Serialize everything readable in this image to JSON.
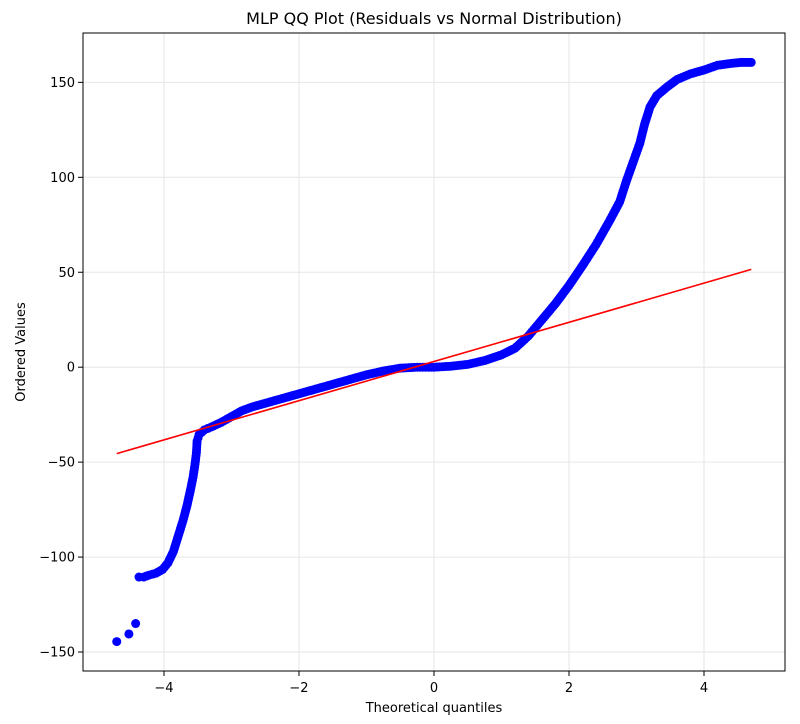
{
  "chart_data": {
    "type": "scatter",
    "title": "MLP QQ Plot (Residuals vs Normal Distribution)",
    "xlabel": "Theoretical quantiles",
    "ylabel": "Ordered Values",
    "xlim": [
      -5.2,
      5.2
    ],
    "ylim": [
      -160,
      176
    ],
    "xticks": [
      -4,
      -2,
      0,
      2,
      4
    ],
    "xtick_labels": [
      "−4",
      "−2",
      "0",
      "2",
      "4"
    ],
    "yticks": [
      -150,
      -100,
      -50,
      0,
      50,
      100,
      150
    ],
    "ytick_labels": [
      "−150",
      "−100",
      "−50",
      "0",
      "50",
      "100",
      "150"
    ],
    "grid": true,
    "series": [
      {
        "kind": "scatter",
        "color": "#0000ff",
        "points": [
          [
            -4.7,
            -144.5
          ],
          [
            -4.52,
            -140.5
          ],
          [
            -4.42,
            -135.0
          ],
          [
            -4.37,
            -110.5
          ],
          [
            -4.3,
            -110.5
          ],
          [
            -4.22,
            -109.5
          ],
          [
            -4.12,
            -108.5
          ],
          [
            -4.02,
            -106.5
          ],
          [
            -3.94,
            -103.0
          ],
          [
            -3.86,
            -97.0
          ],
          [
            -3.79,
            -89.0
          ],
          [
            -3.72,
            -81.0
          ],
          [
            -3.66,
            -73.0
          ],
          [
            -3.61,
            -65.0
          ],
          [
            -3.57,
            -58.0
          ],
          [
            -3.54,
            -51.0
          ],
          [
            -3.52,
            -45.0
          ],
          [
            -3.51,
            -39.0
          ],
          [
            -3.48,
            -35.5
          ],
          [
            -3.4,
            -33.0
          ],
          [
            -3.3,
            -31.5
          ],
          [
            -3.15,
            -29.0
          ],
          [
            -3.0,
            -26.0
          ],
          [
            -2.85,
            -23.0
          ],
          [
            -2.7,
            -21.0
          ],
          [
            -2.5,
            -19.0
          ],
          [
            -2.25,
            -16.5
          ],
          [
            -2.0,
            -14.0
          ],
          [
            -1.75,
            -11.5
          ],
          [
            -1.5,
            -9.0
          ],
          [
            -1.25,
            -6.5
          ],
          [
            -1.0,
            -4.0
          ],
          [
            -0.75,
            -2.0
          ],
          [
            -0.5,
            -0.5
          ],
          [
            -0.25,
            0.0
          ],
          [
            0.0,
            0.0
          ],
          [
            0.25,
            0.5
          ],
          [
            0.5,
            1.5
          ],
          [
            0.75,
            3.5
          ],
          [
            1.0,
            6.5
          ],
          [
            1.2,
            10.0
          ],
          [
            1.4,
            16.5
          ],
          [
            1.6,
            25.0
          ],
          [
            1.8,
            33.5
          ],
          [
            2.0,
            43.0
          ],
          [
            2.2,
            53.5
          ],
          [
            2.4,
            64.5
          ],
          [
            2.6,
            77.0
          ],
          [
            2.75,
            87.0
          ],
          [
            2.85,
            98.0
          ],
          [
            2.95,
            108.0
          ],
          [
            3.05,
            118.0
          ],
          [
            3.12,
            128.0
          ],
          [
            3.2,
            137.0
          ],
          [
            3.3,
            143.0
          ],
          [
            3.45,
            147.5
          ],
          [
            3.6,
            151.5
          ],
          [
            3.8,
            154.5
          ],
          [
            4.0,
            156.5
          ],
          [
            4.2,
            159.0
          ],
          [
            4.4,
            160.0
          ],
          [
            4.55,
            160.5
          ],
          [
            4.7,
            160.5
          ]
        ]
      },
      {
        "kind": "line",
        "color": "#ff0000",
        "points": [
          [
            -4.7,
            -45.5
          ],
          [
            4.7,
            51.5
          ]
        ]
      }
    ]
  }
}
